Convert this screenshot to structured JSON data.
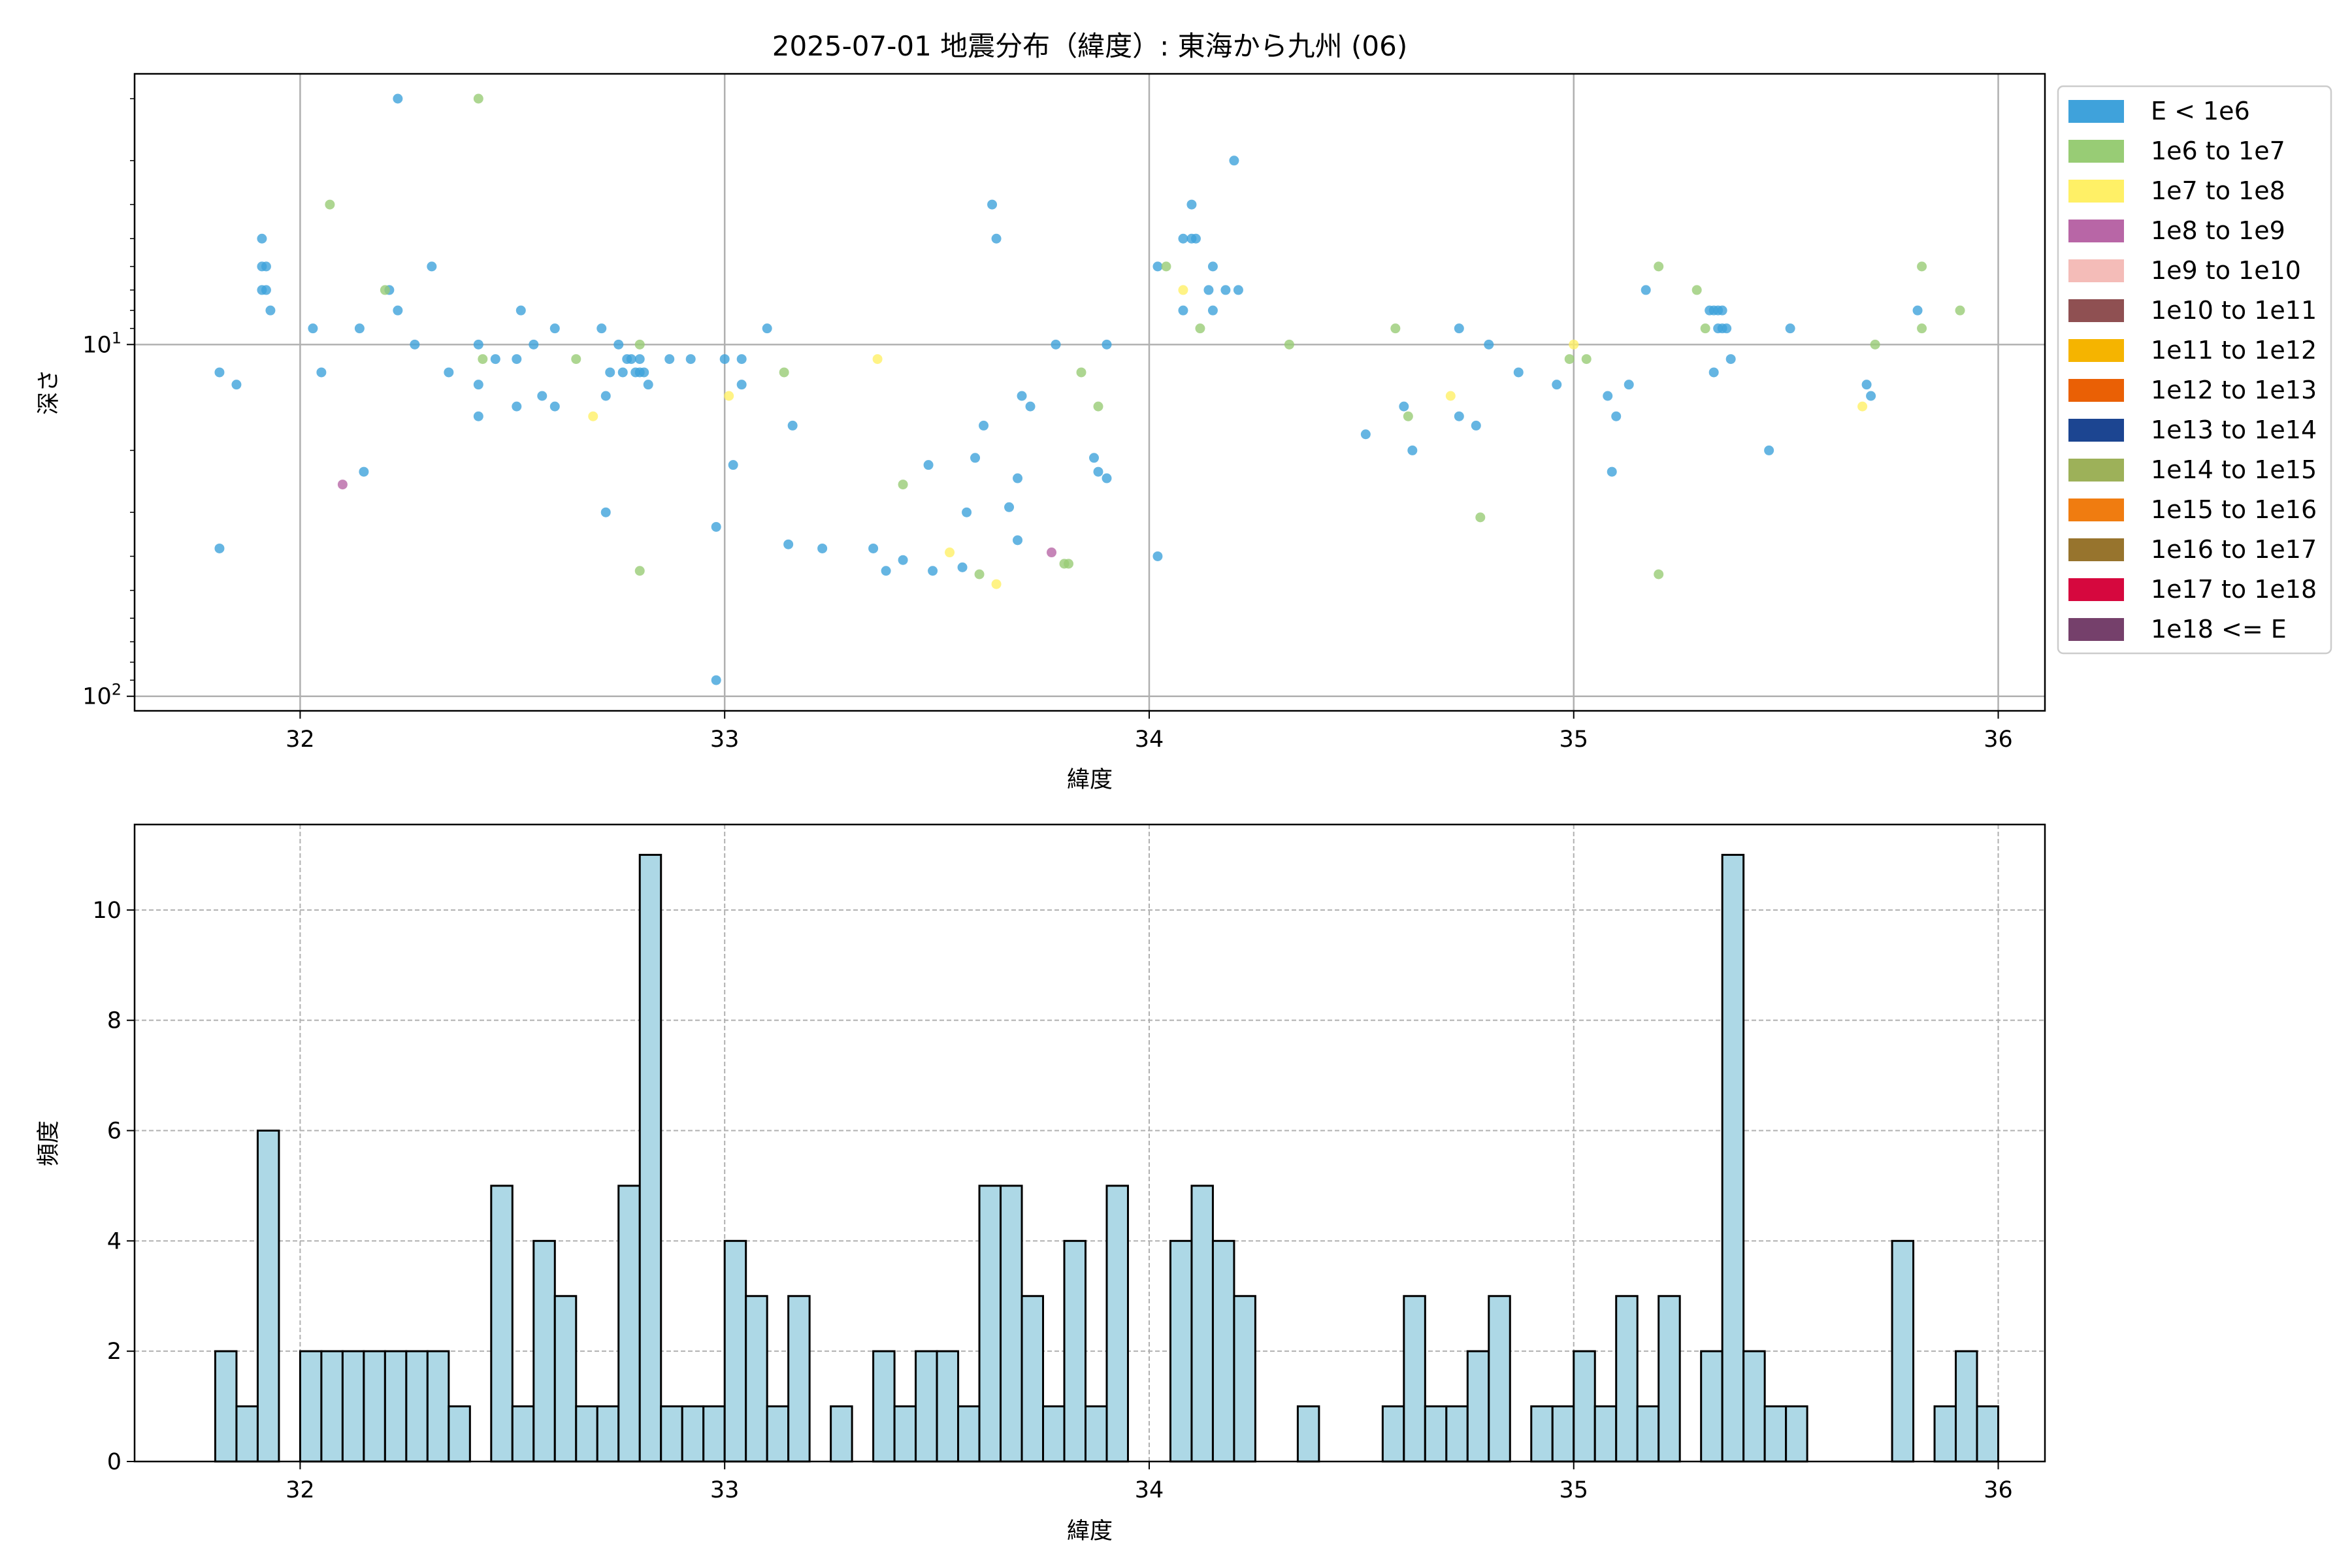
{
  "title": "2025-07-01 地震分布（緯度）: 東海から九州 (06)",
  "legend": {
    "position": "upper-right-outside",
    "entries": [
      {
        "label": "E < 1e6",
        "color": "#3fa2db"
      },
      {
        "label": "1e6 to 1e7",
        "color": "#98cc75"
      },
      {
        "label": "1e7 to 1e8",
        "color": "#fff066"
      },
      {
        "label": "1e8 to 1e9",
        "color": "#b866a6"
      },
      {
        "label": "1e9 to 1e10",
        "color": "#f4bcb8"
      },
      {
        "label": "1e10 to 1e11",
        "color": "#8f5052"
      },
      {
        "label": "1e11 to 1e12",
        "color": "#f5b400"
      },
      {
        "label": "1e12 to 1e13",
        "color": "#ea6005"
      },
      {
        "label": "1e13 to 1e14",
        "color": "#1c4591"
      },
      {
        "label": "1e14 to 1e15",
        "color": "#9db159"
      },
      {
        "label": "1e15 to 1e16",
        "color": "#f07c10"
      },
      {
        "label": "1e16 to 1e17",
        "color": "#97742d"
      },
      {
        "label": "1e17 to 1e18",
        "color": "#d6083e"
      },
      {
        "label": "1e18 <= E",
        "color": "#75406b"
      }
    ]
  },
  "chart_data": [
    {
      "type": "scatter",
      "xlabel": "緯度",
      "ylabel": "深さ",
      "xlim": [
        31.61,
        36.11
      ],
      "ylim": [
        110,
        1.7
      ],
      "yscale": "log",
      "yaxis_inverted": true,
      "xticks": [
        32,
        33,
        34,
        35,
        36
      ],
      "yticks": [
        {
          "value": 10,
          "label": "10",
          "sup": "1"
        },
        {
          "value": 100,
          "label": "10",
          "sup": "2"
        }
      ],
      "grid": true,
      "series": [
        {
          "name": "E < 1e6",
          "color": "#3fa2db",
          "points": [
            [
              31.81,
              12.0
            ],
            [
              31.81,
              38.0
            ],
            [
              31.85,
              13.0
            ],
            [
              31.91,
              5.0
            ],
            [
              31.91,
              6.0
            ],
            [
              31.91,
              7.0
            ],
            [
              31.92,
              6.0
            ],
            [
              31.92,
              7.0
            ],
            [
              31.93,
              8.0
            ],
            [
              32.03,
              9.0
            ],
            [
              32.05,
              12.0
            ],
            [
              32.14,
              9.0
            ],
            [
              32.15,
              23.0
            ],
            [
              32.21,
              7.0
            ],
            [
              32.23,
              2.0
            ],
            [
              32.23,
              8.0
            ],
            [
              32.27,
              10.0
            ],
            [
              32.31,
              6.0
            ],
            [
              32.35,
              12.0
            ],
            [
              32.42,
              10.0
            ],
            [
              32.42,
              13.0
            ],
            [
              32.42,
              16.0
            ],
            [
              32.46,
              11.0
            ],
            [
              32.51,
              11.0
            ],
            [
              32.51,
              15.0
            ],
            [
              32.52,
              8.0
            ],
            [
              32.55,
              10.0
            ],
            [
              32.57,
              14.0
            ],
            [
              32.6,
              9.0
            ],
            [
              32.6,
              15.0
            ],
            [
              32.71,
              9.0
            ],
            [
              32.72,
              30.0
            ],
            [
              32.72,
              14.0
            ],
            [
              32.73,
              12.0
            ],
            [
              32.75,
              10.0
            ],
            [
              32.76,
              12.0
            ],
            [
              32.77,
              11.0
            ],
            [
              32.78,
              11.0
            ],
            [
              32.79,
              12.0
            ],
            [
              32.8,
              11.0
            ],
            [
              32.8,
              12.0
            ],
            [
              32.81,
              12.0
            ],
            [
              32.82,
              13.0
            ],
            [
              32.87,
              11.0
            ],
            [
              32.92,
              11.0
            ],
            [
              32.98,
              90.0
            ],
            [
              32.98,
              33.0
            ],
            [
              33.0,
              11.0
            ],
            [
              33.02,
              22.0
            ],
            [
              33.04,
              13.0
            ],
            [
              33.04,
              11.0
            ],
            [
              33.1,
              9.0
            ],
            [
              33.15,
              37.0
            ],
            [
              33.16,
              17.0
            ],
            [
              33.23,
              38.0
            ],
            [
              33.35,
              38.0
            ],
            [
              33.38,
              44.0
            ],
            [
              33.42,
              41.0
            ],
            [
              33.48,
              22.0
            ],
            [
              33.49,
              44.0
            ],
            [
              33.56,
              43.0
            ],
            [
              33.57,
              30.0
            ],
            [
              33.59,
              21.0
            ],
            [
              33.61,
              17.0
            ],
            [
              33.63,
              4.0
            ],
            [
              33.64,
              5.0
            ],
            [
              33.67,
              29.0
            ],
            [
              33.69,
              24.0
            ],
            [
              33.69,
              36.0
            ],
            [
              33.7,
              14.0
            ],
            [
              33.72,
              15.0
            ],
            [
              33.78,
              10.0
            ],
            [
              33.87,
              21.0
            ],
            [
              33.88,
              23.0
            ],
            [
              33.9,
              24.0
            ],
            [
              33.9,
              10.0
            ],
            [
              34.02,
              6.0
            ],
            [
              34.02,
              40.0
            ],
            [
              34.08,
              8.0
            ],
            [
              34.08,
              5.0
            ],
            [
              34.1,
              5.0
            ],
            [
              34.1,
              4.0
            ],
            [
              34.11,
              5.0
            ],
            [
              34.14,
              7.0
            ],
            [
              34.15,
              6.0
            ],
            [
              34.15,
              8.0
            ],
            [
              34.18,
              7.0
            ],
            [
              34.2,
              3.0
            ],
            [
              34.21,
              7.0
            ],
            [
              34.51,
              18.0
            ],
            [
              34.6,
              15.0
            ],
            [
              34.62,
              20.0
            ],
            [
              34.73,
              16.0
            ],
            [
              34.73,
              9.0
            ],
            [
              34.77,
              17.0
            ],
            [
              34.8,
              10.0
            ],
            [
              34.87,
              12.0
            ],
            [
              34.96,
              13.0
            ],
            [
              35.08,
              14.0
            ],
            [
              35.09,
              23.0
            ],
            [
              35.1,
              16.0
            ],
            [
              35.13,
              13.0
            ],
            [
              35.17,
              7.0
            ],
            [
              35.32,
              8.0
            ],
            [
              35.33,
              8.0
            ],
            [
              35.33,
              12.0
            ],
            [
              35.34,
              9.0
            ],
            [
              35.34,
              8.0
            ],
            [
              35.35,
              8.0
            ],
            [
              35.35,
              9.0
            ],
            [
              35.36,
              9.0
            ],
            [
              35.37,
              11.0
            ],
            [
              35.46,
              20.0
            ],
            [
              35.51,
              9.0
            ],
            [
              35.69,
              13.0
            ],
            [
              35.7,
              14.0
            ],
            [
              35.81,
              8.0
            ]
          ]
        },
        {
          "name": "1e6 to 1e7",
          "color": "#98cc75",
          "points": [
            [
              32.07,
              4.0
            ],
            [
              32.2,
              7.0
            ],
            [
              32.42,
              2.0
            ],
            [
              32.43,
              11.0
            ],
            [
              32.65,
              11.0
            ],
            [
              32.8,
              10.0
            ],
            [
              32.8,
              44.0
            ],
            [
              33.14,
              12.0
            ],
            [
              33.42,
              25.0
            ],
            [
              33.6,
              45.0
            ],
            [
              33.8,
              42.0
            ],
            [
              33.81,
              42.0
            ],
            [
              33.84,
              12.0
            ],
            [
              33.88,
              15.0
            ],
            [
              34.04,
              6.0
            ],
            [
              34.12,
              9.0
            ],
            [
              34.33,
              10.0
            ],
            [
              34.58,
              9.0
            ],
            [
              34.61,
              16.0
            ],
            [
              34.78,
              31.0
            ],
            [
              34.99,
              11.0
            ],
            [
              35.03,
              11.0
            ],
            [
              35.2,
              6.0
            ],
            [
              35.2,
              45.0
            ],
            [
              35.29,
              7.0
            ],
            [
              35.31,
              9.0
            ],
            [
              35.71,
              10.0
            ],
            [
              35.82,
              6.0
            ],
            [
              35.82,
              9.0
            ],
            [
              35.91,
              8.0
            ]
          ]
        },
        {
          "name": "1e7 to 1e8",
          "color": "#fff066",
          "points": [
            [
              32.69,
              16.0
            ],
            [
              33.01,
              14.0
            ],
            [
              33.36,
              11.0
            ],
            [
              33.53,
              39.0
            ],
            [
              33.64,
              48.0
            ],
            [
              34.08,
              7.0
            ],
            [
              34.71,
              14.0
            ],
            [
              35.0,
              10.0
            ],
            [
              35.68,
              15.0
            ]
          ]
        },
        {
          "name": "1e8 to 1e9",
          "color": "#b866a6",
          "points": [
            [
              32.1,
              25.0
            ],
            [
              33.77,
              39.0
            ]
          ]
        }
      ]
    },
    {
      "type": "bar",
      "xlabel": "緯度",
      "ylabel": "頻度",
      "xlim": [
        31.61,
        36.11
      ],
      "ylim": [
        0,
        11.55
      ],
      "xticks": [
        32,
        33,
        34,
        35,
        36
      ],
      "yticks": [
        0,
        2,
        4,
        6,
        8,
        10
      ],
      "grid": "dashed",
      "bin_start": 31.8,
      "bin_width": 0.05,
      "bar_color": "#add8e6",
      "edge_color": "#000000",
      "counts": [
        2,
        1,
        6,
        0,
        2,
        2,
        2,
        2,
        2,
        2,
        2,
        1,
        0,
        5,
        1,
        4,
        3,
        1,
        1,
        5,
        11,
        1,
        1,
        1,
        4,
        3,
        1,
        3,
        0,
        1,
        0,
        2,
        1,
        2,
        2,
        1,
        5,
        5,
        3,
        1,
        4,
        1,
        5,
        0,
        0,
        4,
        5,
        4,
        3,
        0,
        0,
        1,
        0,
        0,
        0,
        1,
        3,
        1,
        1,
        2,
        3,
        0,
        1,
        1,
        2,
        1,
        3,
        1,
        3,
        0,
        2,
        11,
        2,
        1,
        1,
        0,
        0,
        0,
        0,
        4,
        0,
        1,
        2,
        1
      ]
    }
  ]
}
